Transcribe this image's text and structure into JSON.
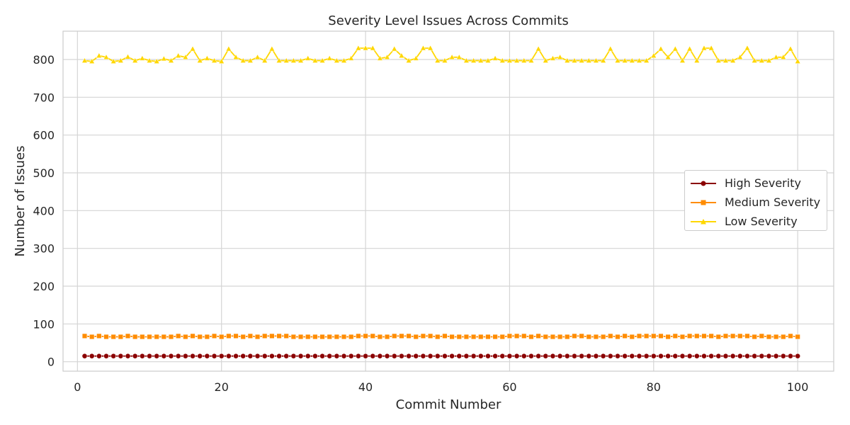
{
  "chart_data": {
    "type": "line",
    "title": "Severity Level Issues Across Commits",
    "xlabel": "Commit Number",
    "ylabel": "Number of Issues",
    "xlim": [
      -2,
      105
    ],
    "ylim": [
      -25,
      875
    ],
    "xticks": [
      0,
      20,
      40,
      60,
      80,
      100
    ],
    "yticks": [
      0,
      100,
      200,
      300,
      400,
      500,
      600,
      700,
      800
    ],
    "grid": true,
    "legend_position": "center-right",
    "x_start": 1,
    "series": [
      {
        "name": "High Severity",
        "color": "#8b0000",
        "marker": "circle",
        "values": [
          15,
          15,
          15,
          15,
          15,
          15,
          15,
          15,
          15,
          15,
          15,
          15,
          15,
          15,
          15,
          15,
          15,
          15,
          15,
          15,
          15,
          15,
          15,
          15,
          15,
          15,
          15,
          15,
          15,
          15,
          15,
          15,
          15,
          15,
          15,
          15,
          15,
          15,
          15,
          15,
          15,
          15,
          15,
          15,
          15,
          15,
          15,
          15,
          15,
          15,
          15,
          15,
          15,
          15,
          15,
          15,
          15,
          15,
          15,
          15,
          15,
          15,
          15,
          15,
          15,
          15,
          15,
          15,
          15,
          15,
          15,
          15,
          15,
          15,
          15,
          15,
          15,
          15,
          15,
          15,
          15,
          15,
          15,
          15,
          15,
          15,
          15,
          15,
          15,
          15,
          15,
          15,
          15,
          15,
          15,
          15,
          15,
          15,
          15,
          15
        ]
      },
      {
        "name": "Medium Severity",
        "color": "#ff8c00",
        "marker": "square",
        "values": [
          68,
          66,
          68,
          66,
          66,
          66,
          68,
          66,
          66,
          66,
          66,
          66,
          66,
          68,
          66,
          68,
          66,
          66,
          68,
          66,
          68,
          68,
          66,
          68,
          66,
          68,
          68,
          68,
          68,
          66,
          66,
          66,
          66,
          66,
          66,
          66,
          66,
          66,
          68,
          68,
          68,
          66,
          66,
          68,
          68,
          68,
          66,
          68,
          68,
          66,
          68,
          66,
          66,
          66,
          66,
          66,
          66,
          66,
          66,
          68,
          68,
          68,
          66,
          68,
          66,
          66,
          66,
          66,
          68,
          68,
          66,
          66,
          66,
          68,
          66,
          68,
          66,
          68,
          68,
          68,
          68,
          66,
          68,
          66,
          68,
          68,
          68,
          68,
          66,
          68,
          68,
          68,
          68,
          66,
          68,
          66,
          66,
          66,
          68,
          66
        ]
      },
      {
        "name": "Low Severity",
        "color": "#ffd700",
        "marker": "triangle",
        "values": [
          797,
          795,
          810,
          806,
          795,
          797,
          807,
          797,
          803,
          797,
          795,
          802,
          797,
          810,
          806,
          828,
          797,
          803,
          797,
          795,
          828,
          806,
          797,
          797,
          806,
          797,
          828,
          797,
          797,
          797,
          797,
          803,
          797,
          797,
          803,
          797,
          797,
          803,
          830,
          830,
          830,
          803,
          806,
          828,
          810,
          797,
          803,
          830,
          830,
          797,
          797,
          806,
          806,
          797,
          797,
          797,
          797,
          803,
          797,
          797,
          797,
          797,
          797,
          828,
          797,
          803,
          806,
          797,
          797,
          797,
          797,
          797,
          797,
          828,
          797,
          797,
          797,
          797,
          797,
          810,
          828,
          806,
          828,
          797,
          828,
          797,
          830,
          830,
          797,
          797,
          797,
          806,
          830,
          797,
          797,
          797,
          806,
          806,
          828,
          795
        ]
      }
    ]
  }
}
